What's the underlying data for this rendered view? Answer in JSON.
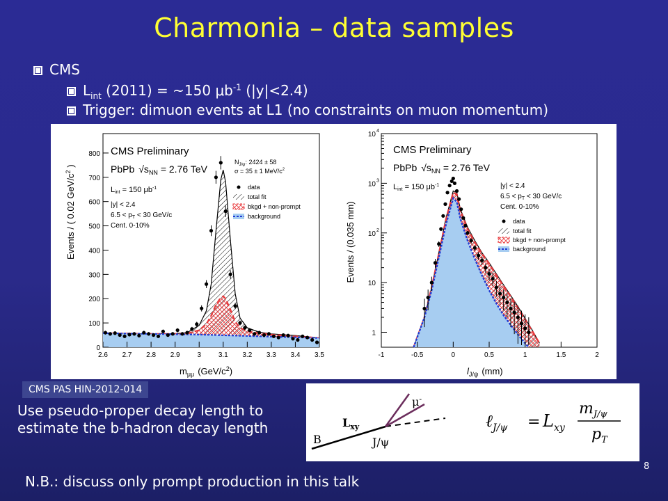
{
  "slide": {
    "title": "Charmonia – data samples",
    "page_number": "8",
    "bullet_cms": "CMS",
    "lint_label": "L",
    "lint_sub": "int",
    "lint_text": " (2011) = ~150 ",
    "lint_mu": "μ",
    "lint_b": "b",
    "lint_sup": "-1",
    "lint_tail": " (|y|<2.4)",
    "trigger_text": "Trigger: dimuon events at L1 (no constraints on muon momentum)",
    "pas_label": "CMS PAS HIN-2012-014",
    "description": "Use pseudo-proper decay length to estimate the b-hadron decay length",
    "note": "N.B.: discuss only prompt production in this talk"
  },
  "diagram": {
    "B": "B",
    "Lxy": "L",
    "Lxy_sub": "xy",
    "jpsi": "J/ψ",
    "mu": "μ",
    "mu_sup": "-",
    "formula_lhs": "ℓ",
    "formula_lhs_sub": "J/ψ",
    "formula_eq": "=",
    "formula_L": "L",
    "formula_L_sub": "xy",
    "formula_num": "m",
    "formula_num_sub": "J/ψ",
    "formula_den": "p",
    "formula_den_sub": "T"
  },
  "chart_data": [
    {
      "type": "scatter",
      "title": "CMS Preliminary",
      "xlabel": "m",
      "xlabel_sub": "μμ",
      "xlabel_unit": "(GeV/c",
      "xlabel_unit_sup": "2",
      "xlabel_close": ")",
      "ylabel": "Events / ( 0.02 GeV/c",
      "ylabel_sup": "2",
      "ylabel_close": " )",
      "xlim": [
        2.6,
        3.5
      ],
      "ylim": [
        0,
        880
      ],
      "xticks": [
        "2.6",
        "2.7",
        "2.8",
        "2.9",
        "3",
        "3.1",
        "3.2",
        "3.3",
        "3.4",
        "3.5"
      ],
      "yticks": [
        "0",
        "100",
        "200",
        "300",
        "400",
        "500",
        "600",
        "700",
        "800"
      ],
      "annotations": {
        "system_label": "PbPb",
        "sqrt": "√s",
        "sqrt_sub": "NN",
        "energy": " = 2.76 TeV",
        "lumi": "L",
        "lumi_sub": "int",
        "lumi_val": " = 150 μb",
        "lumi_sup": "-1",
        "rapidity": "|y| < 2.4",
        "pt_cut_a": "6.5 < p",
        "pt_cut_sub": "T",
        "pt_cut_b": " < 30 GeV/c",
        "centrality": "Cent. 0-10%",
        "njpsi_label": "N",
        "njpsi_sub": "J/ψ",
        "njpsi_val": ": 2424 ± 58",
        "sigma": "σ = 35 ± 1 MeV/c",
        "sigma_sup": "2"
      },
      "legend": [
        "data",
        "total fit",
        "bkgd + non-prompt",
        "background"
      ],
      "legend_position": "right",
      "series": [
        {
          "name": "data",
          "x": [
            2.61,
            2.63,
            2.65,
            2.67,
            2.69,
            2.71,
            2.73,
            2.75,
            2.77,
            2.79,
            2.81,
            2.83,
            2.85,
            2.87,
            2.89,
            2.91,
            2.93,
            2.95,
            2.97,
            2.99,
            3.01,
            3.03,
            3.05,
            3.07,
            3.09,
            3.11,
            3.13,
            3.15,
            3.17,
            3.19,
            3.21,
            3.23,
            3.25,
            3.27,
            3.29,
            3.31,
            3.33,
            3.35,
            3.37,
            3.39,
            3.41,
            3.43,
            3.45,
            3.47,
            3.49
          ],
          "y": [
            60,
            55,
            58,
            50,
            45,
            52,
            55,
            48,
            60,
            55,
            50,
            45,
            65,
            50,
            55,
            70,
            55,
            60,
            75,
            95,
            160,
            260,
            480,
            700,
            760,
            560,
            300,
            170,
            100,
            80,
            70,
            55,
            60,
            50,
            55,
            45,
            40,
            50,
            48,
            35,
            30,
            45,
            40,
            30,
            20
          ]
        },
        {
          "name": "total fit",
          "x": [
            2.6,
            2.8,
            2.9,
            2.95,
            3.0,
            3.03,
            3.05,
            3.07,
            3.09,
            3.1,
            3.11,
            3.13,
            3.15,
            3.17,
            3.2,
            3.25,
            3.3,
            3.4,
            3.5
          ],
          "y": [
            58,
            55,
            56,
            60,
            90,
            150,
            260,
            480,
            690,
            730,
            680,
            440,
            220,
            120,
            80,
            62,
            55,
            48,
            38
          ]
        },
        {
          "name": "bkgd + non-prompt",
          "x": [
            2.6,
            2.8,
            2.9,
            2.95,
            3.0,
            3.03,
            3.05,
            3.07,
            3.09,
            3.1,
            3.11,
            3.13,
            3.15,
            3.17,
            3.2,
            3.25,
            3.3,
            3.4,
            3.5
          ],
          "y": [
            58,
            55,
            55,
            57,
            70,
            95,
            130,
            175,
            205,
            210,
            200,
            155,
            105,
            80,
            65,
            58,
            52,
            45,
            38
          ]
        },
        {
          "name": "background",
          "x": [
            2.6,
            3.0,
            3.5
          ],
          "y": [
            58,
            52,
            38
          ]
        }
      ]
    },
    {
      "type": "scatter",
      "title": "CMS Preliminary",
      "xlabel": "l",
      "xlabel_sub": "J/ψ",
      "xlabel_unit": "(mm)",
      "ylabel": "Events / (0.035 mm)",
      "xlim": [
        -1,
        2
      ],
      "ylim": [
        0.5,
        10000
      ],
      "yscale": "log",
      "xticks": [
        "-1",
        "-0.5",
        "0",
        "0.5",
        "1",
        "1.5",
        "2"
      ],
      "yticks": [
        "1",
        "10",
        "10",
        "10",
        "10"
      ],
      "ytick_sups": [
        "",
        "",
        "2",
        "3",
        "4"
      ],
      "annotations": {
        "system_label": "PbPb",
        "sqrt": "√s",
        "sqrt_sub": "NN",
        "energy": " = 2.76 TeV",
        "lumi": "L",
        "lumi_sub": "int",
        "lumi_val": " = 150 μb",
        "lumi_sup": "-1",
        "rapidity": "|y| < 2.4",
        "pt_cut_a": "6.5 < p",
        "pt_cut_sub": "T",
        "pt_cut_b": " < 30 GeV/c",
        "centrality": "Cent. 0-10%"
      },
      "legend": [
        "data",
        "total fit",
        "bkgd + non-prompt",
        "background"
      ],
      "legend_position": "right",
      "series": [
        {
          "name": "data",
          "x": [
            -0.4,
            -0.35,
            -0.3,
            -0.25,
            -0.2,
            -0.17,
            -0.14,
            -0.11,
            -0.08,
            -0.05,
            -0.02,
            0.0,
            0.02,
            0.05,
            0.08,
            0.11,
            0.14,
            0.17,
            0.2,
            0.25,
            0.3,
            0.35,
            0.4,
            0.45,
            0.5,
            0.55,
            0.6,
            0.65,
            0.7,
            0.75,
            0.8,
            0.85,
            0.9,
            0.95,
            1.0,
            1.05
          ],
          "y": [
            3,
            5,
            10,
            25,
            60,
            120,
            220,
            380,
            650,
            900,
            1100,
            1250,
            1000,
            700,
            480,
            300,
            200,
            140,
            100,
            70,
            50,
            35,
            28,
            20,
            15,
            12,
            8,
            6,
            5,
            4,
            3,
            2.5,
            2,
            1.5,
            1.2,
            1
          ]
        },
        {
          "name": "total fit",
          "x": [
            -0.55,
            -0.4,
            -0.3,
            -0.2,
            -0.1,
            0.0,
            0.05,
            0.1,
            0.2,
            0.3,
            0.4,
            0.5,
            0.6,
            0.7,
            0.8,
            0.9,
            1.0,
            1.1,
            1.2
          ],
          "y": [
            0.5,
            2,
            8,
            40,
            200,
            700,
            650,
            300,
            130,
            70,
            40,
            25,
            15,
            9,
            5.5,
            3.3,
            1.9,
            1.1,
            0.6
          ]
        },
        {
          "name": "bkgd + non-prompt",
          "x": [
            -0.55,
            -0.4,
            -0.3,
            -0.2,
            -0.1,
            0.0,
            0.05,
            0.1,
            0.2,
            0.3,
            0.4,
            0.5,
            0.6,
            0.7,
            0.8,
            0.9,
            1.0,
            1.1,
            1.2
          ],
          "y": [
            0.5,
            2,
            8,
            38,
            190,
            650,
            600,
            280,
            120,
            65,
            38,
            24,
            14,
            8.5,
            5.2,
            3.1,
            1.8,
            1.05,
            0.6
          ]
        },
        {
          "name": "background",
          "x": [
            -0.55,
            -0.4,
            -0.3,
            -0.2,
            -0.1,
            0.0,
            0.05,
            0.1,
            0.2,
            0.3,
            0.4,
            0.5,
            0.6,
            0.7,
            0.8,
            0.9,
            1.0,
            1.05
          ],
          "y": [
            0.5,
            2,
            7,
            32,
            150,
            500,
            420,
            190,
            70,
            30,
            14,
            7,
            3.8,
            2.2,
            1.4,
            0.9,
            0.6,
            0.5
          ]
        }
      ]
    }
  ]
}
